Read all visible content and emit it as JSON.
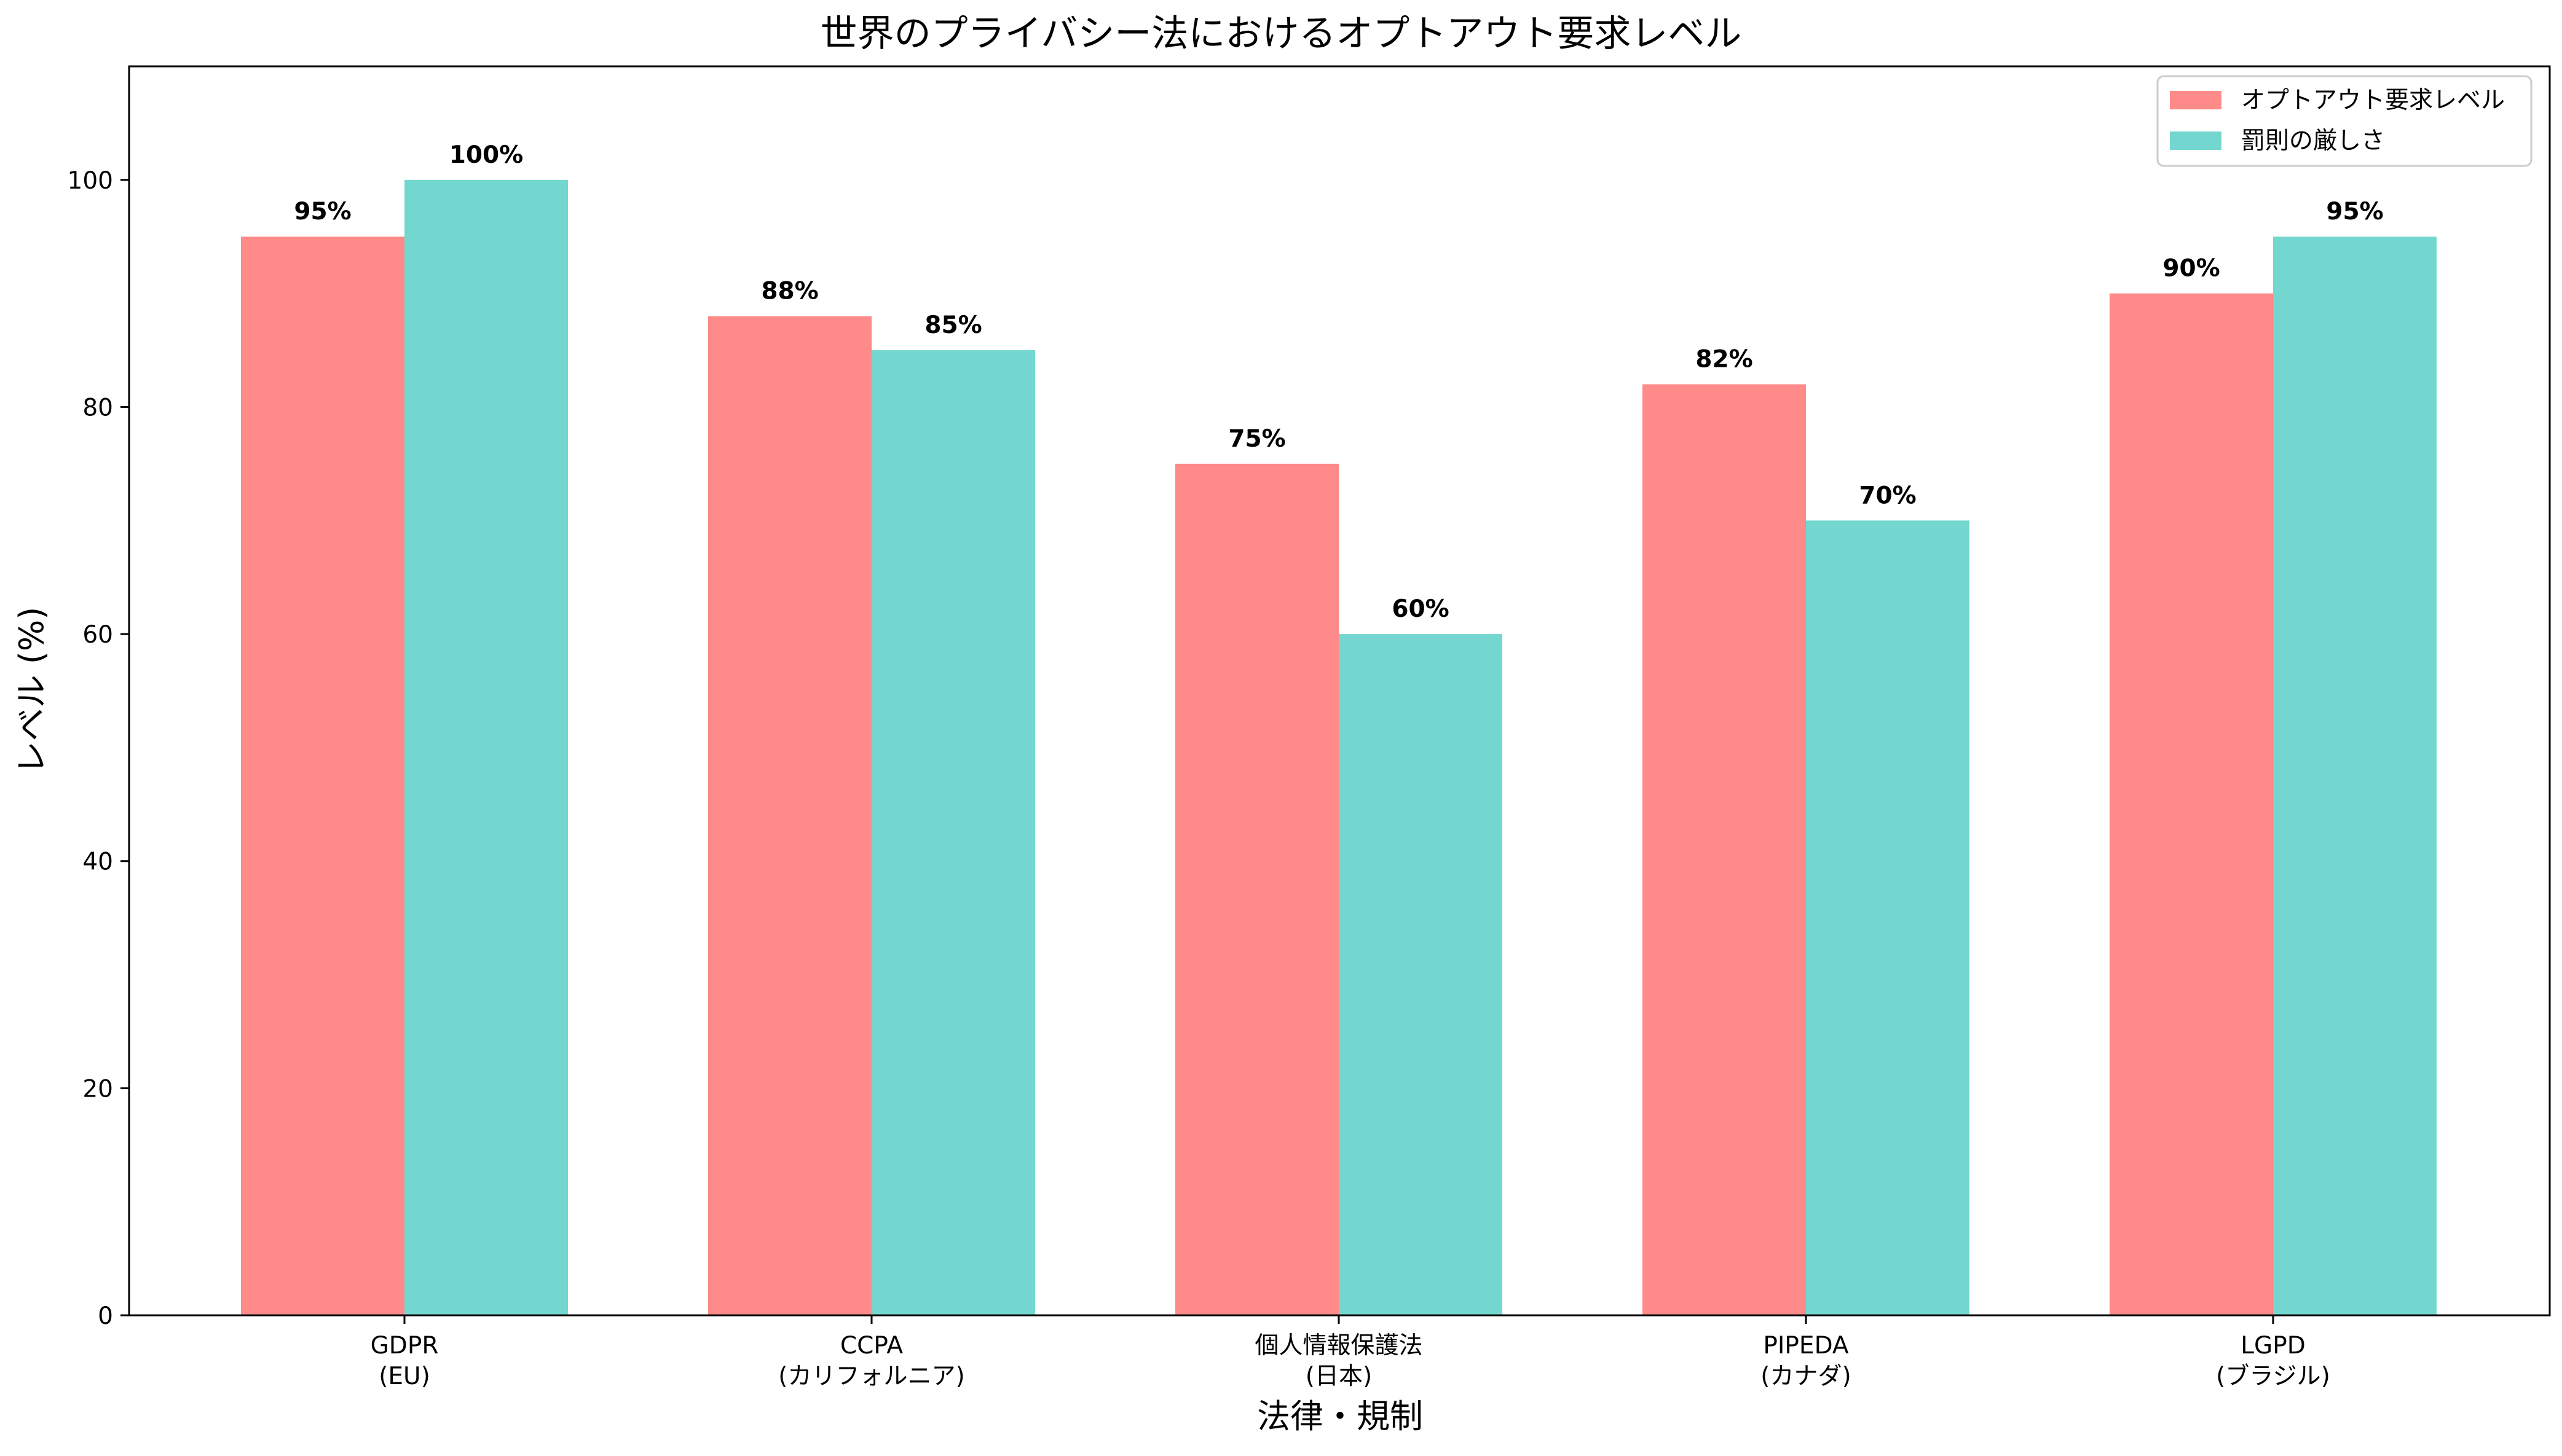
{
  "chart_data": {
    "type": "bar",
    "title": "世界のプライバシー法におけるオプトアウト要求レベル",
    "xlabel": "法律・規制",
    "ylabel": "レベル (%)",
    "ylim": [
      0,
      110
    ],
    "yticks": [
      0,
      20,
      40,
      60,
      80,
      100
    ],
    "categories": [
      [
        "GDPR",
        "(EU)"
      ],
      [
        "CCPA",
        "(カリフォルニア)"
      ],
      [
        "個人情報保護法",
        "(日本)"
      ],
      [
        "PIPEDA",
        "(カナダ)"
      ],
      [
        "LGPD",
        "(ブラジル)"
      ]
    ],
    "series": [
      {
        "name": "オプトアウト要求レベル",
        "color": "#ff8a8a",
        "values": [
          95,
          88,
          75,
          82,
          90
        ],
        "labels": [
          "95%",
          "88%",
          "75%",
          "82%",
          "90%"
        ]
      },
      {
        "name": "罰則の厳しさ",
        "color": "#74d7cf",
        "values": [
          100,
          85,
          60,
          70,
          95
        ],
        "labels": [
          "100%",
          "85%",
          "60%",
          "70%",
          "95%"
        ]
      }
    ],
    "grid": false,
    "legend_position": "top-right"
  }
}
